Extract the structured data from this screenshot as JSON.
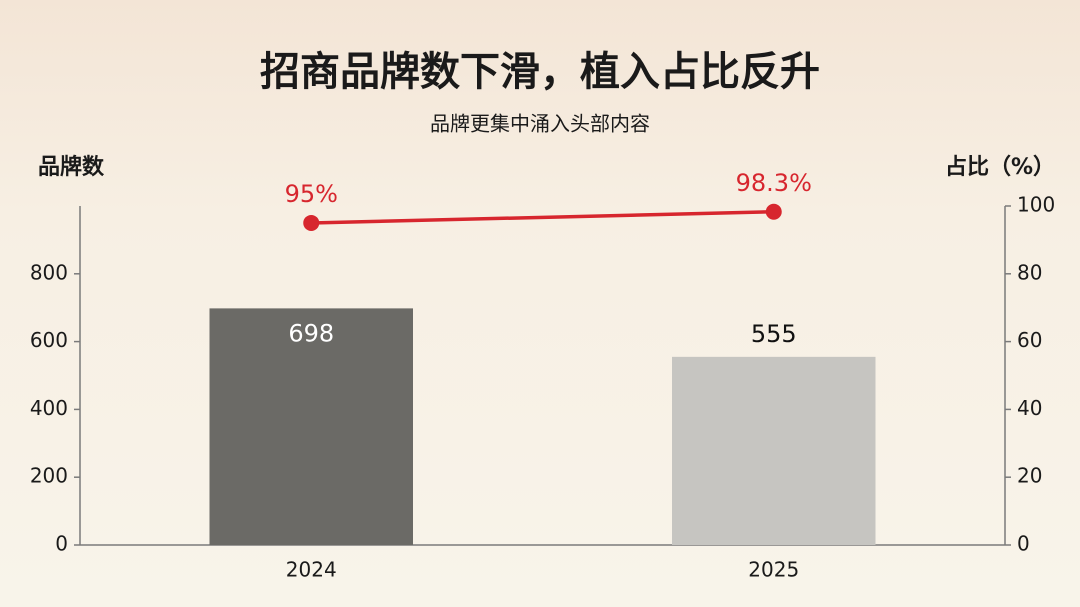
{
  "chart_data": {
    "type": "bar",
    "title": "招商品牌数下滑，植入占比反升",
    "subtitle": "品牌更集中涌入头部内容",
    "y_label": "品牌数",
    "y2_label": "占比（%）",
    "categories": [
      "2024",
      "2025"
    ],
    "ylim": [
      0,
      1000
    ],
    "yticks": [
      0,
      200,
      400,
      600,
      800
    ],
    "y2lim": [
      0,
      100
    ],
    "y2ticks": [
      0,
      20,
      40,
      60,
      80,
      100
    ],
    "series": [
      {
        "type": "bar",
        "colors": [
          "#6b6a66",
          "#c6c5c1"
        ],
        "values": [
          698,
          555
        ]
      },
      {
        "type": "line",
        "axis": "y2",
        "color": "#d7262e",
        "values": [
          95,
          98.3
        ],
        "value_labels": [
          "95%",
          "98.3%"
        ]
      }
    ]
  }
}
